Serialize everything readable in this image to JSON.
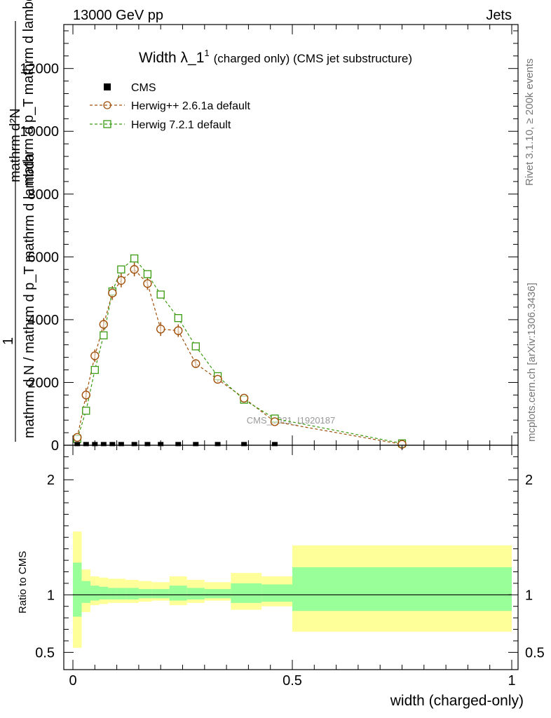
{
  "header": {
    "energy_label": "13000 GeV pp",
    "process_label": "Jets"
  },
  "side": {
    "rivet_label": "Rivet 3.1.10, ≥ 200k events",
    "mcplots_label": "mcplots.cern.ch [arXiv:1306.3436]"
  },
  "chart_data": [
    {
      "type": "scatter",
      "panel": "main",
      "title_main": "Width λ_1",
      "title_sup": "1",
      "title_rest": "(charged only) (CMS jet substructure)",
      "ylabel_top": "mathrm d²N",
      "ylabel_frac_one": "1",
      "ylabel_den": "mathrm d N / mathrm d p_T mathrm d lambda",
      "ylabel_num": "mathrm d p_T mathrm d lambda",
      "xlim": [
        0,
        1
      ],
      "ylim": [
        0,
        13400
      ],
      "yticks": [
        0,
        2000,
        4000,
        6000,
        8000,
        10000,
        12000
      ],
      "ytick_labels": [
        "0",
        "2000",
        "4000",
        "6000",
        "8000",
        "10000",
        "12000"
      ],
      "watermark": "CMS_2021_I1920187",
      "colors": {
        "cms": "#000000",
        "herwig_pp": "#a0500a",
        "herwig7": "#3a9a10"
      },
      "series": [
        {
          "name": "CMS",
          "marker": "filled-square",
          "x": [
            0.01,
            0.03,
            0.05,
            0.07,
            0.09,
            0.11,
            0.14,
            0.17,
            0.2,
            0.24,
            0.28,
            0.33,
            0.39,
            0.46
          ],
          "y": [
            15,
            15,
            15,
            15,
            15,
            15,
            15,
            15,
            15,
            15,
            15,
            15,
            15,
            15
          ]
        },
        {
          "name": "Herwig++ 2.6.1a default",
          "marker": "open-circle",
          "x": [
            0.01,
            0.03,
            0.05,
            0.07,
            0.09,
            0.11,
            0.14,
            0.17,
            0.2,
            0.24,
            0.28,
            0.33,
            0.39,
            0.46,
            0.75
          ],
          "y": [
            250,
            1600,
            2850,
            3850,
            4850,
            5250,
            5600,
            5150,
            3700,
            3650,
            2600,
            2100,
            1500,
            750,
            30
          ],
          "err": [
            80,
            220,
            200,
            200,
            220,
            220,
            220,
            200,
            220,
            200,
            120,
            90,
            70,
            50,
            10
          ]
        },
        {
          "name": "Herwig 7.2.1 default",
          "marker": "open-square",
          "x": [
            0.01,
            0.03,
            0.05,
            0.07,
            0.09,
            0.11,
            0.14,
            0.17,
            0.2,
            0.24,
            0.28,
            0.33,
            0.39,
            0.46,
            0.75
          ],
          "y": [
            200,
            1100,
            2400,
            3500,
            4900,
            5600,
            5950,
            5450,
            4800,
            4050,
            3150,
            2200,
            1450,
            850,
            60
          ]
        }
      ]
    },
    {
      "type": "area",
      "panel": "ratio",
      "ylabel": "Ratio to CMS",
      "xlabel": "width (charged-only)",
      "xlim": [
        0,
        1
      ],
      "ylim": [
        0.35,
        2.3
      ],
      "yticks": [
        0.5,
        1,
        2
      ],
      "ytick_labels": [
        "0.5",
        "1",
        "2"
      ],
      "xticks": [
        0,
        0.5,
        1
      ],
      "xtick_labels": [
        "0",
        "0.5",
        "1"
      ],
      "reference": 1,
      "colors": {
        "outer_band": "#ffff99",
        "inner_band": "#99ff99",
        "line": "#000000"
      },
      "bins": [
        {
          "x0": 0.0,
          "x1": 0.02,
          "outer": [
            0.54,
            1.55
          ],
          "inner": [
            0.81,
            1.28
          ]
        },
        {
          "x0": 0.02,
          "x1": 0.04,
          "outer": [
            0.85,
            1.22
          ],
          "inner": [
            0.93,
            1.12
          ]
        },
        {
          "x0": 0.04,
          "x1": 0.06,
          "outer": [
            0.91,
            1.16
          ],
          "inner": [
            0.95,
            1.08
          ]
        },
        {
          "x0": 0.06,
          "x1": 0.08,
          "outer": [
            0.92,
            1.15
          ],
          "inner": [
            0.96,
            1.07
          ]
        },
        {
          "x0": 0.08,
          "x1": 0.1,
          "outer": [
            0.93,
            1.14
          ],
          "inner": [
            0.96,
            1.06
          ]
        },
        {
          "x0": 0.1,
          "x1": 0.12,
          "outer": [
            0.93,
            1.14
          ],
          "inner": [
            0.96,
            1.06
          ]
        },
        {
          "x0": 0.12,
          "x1": 0.15,
          "outer": [
            0.93,
            1.13
          ],
          "inner": [
            0.96,
            1.06
          ]
        },
        {
          "x0": 0.15,
          "x1": 0.18,
          "outer": [
            0.94,
            1.12
          ],
          "inner": [
            0.97,
            1.05
          ]
        },
        {
          "x0": 0.18,
          "x1": 0.22,
          "outer": [
            0.95,
            1.11
          ],
          "inner": [
            0.97,
            1.05
          ]
        },
        {
          "x0": 0.22,
          "x1": 0.26,
          "outer": [
            0.91,
            1.16
          ],
          "inner": [
            0.95,
            1.08
          ]
        },
        {
          "x0": 0.26,
          "x1": 0.3,
          "outer": [
            0.93,
            1.13
          ],
          "inner": [
            0.96,
            1.06
          ]
        },
        {
          "x0": 0.3,
          "x1": 0.36,
          "outer": [
            0.95,
            1.11
          ],
          "inner": [
            0.97,
            1.05
          ]
        },
        {
          "x0": 0.36,
          "x1": 0.43,
          "outer": [
            0.87,
            1.19
          ],
          "inner": [
            0.93,
            1.1
          ]
        },
        {
          "x0": 0.43,
          "x1": 0.5,
          "outer": [
            0.9,
            1.16
          ],
          "inner": [
            0.94,
            1.09
          ]
        },
        {
          "x0": 0.5,
          "x1": 1.0,
          "outer": [
            0.68,
            1.43
          ],
          "inner": [
            0.86,
            1.24
          ]
        }
      ]
    }
  ]
}
